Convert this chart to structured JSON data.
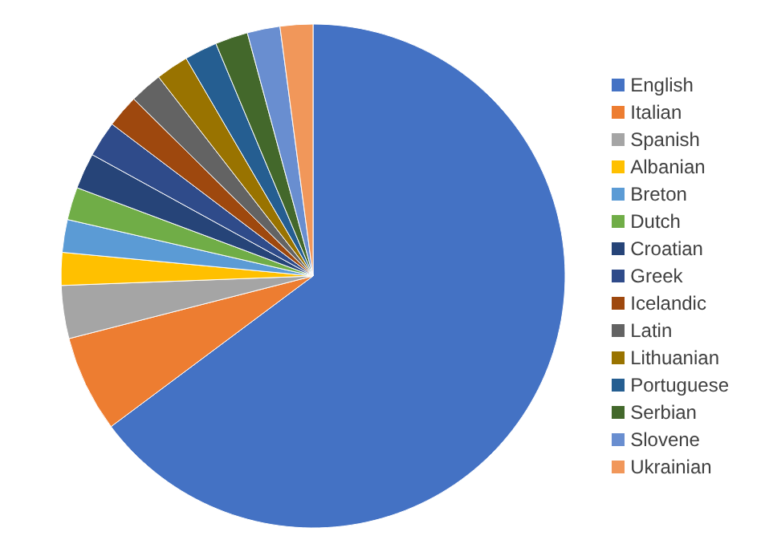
{
  "chart_data": {
    "type": "pie",
    "categories": [
      "English",
      "Italian",
      "Spanish",
      "Albanian",
      "Breton",
      "Dutch",
      "Croatian",
      "Greek",
      "Icelandic",
      "Latin",
      "Lithuanian",
      "Portuguese",
      "Serbian",
      "Slovene",
      "Ukrainian"
    ],
    "values": [
      64.8,
      6.2,
      3.4,
      2.1,
      2.1,
      2.1,
      2.3,
      2.3,
      2.1,
      2.1,
      2.1,
      2.1,
      2.1,
      2.1,
      2.1
    ],
    "colors": [
      "#4472c4",
      "#ed7d31",
      "#a5a5a5",
      "#ffc000",
      "#5b9bd5",
      "#70ad47",
      "#264478",
      "#2f4b8a",
      "#9e480e",
      "#636363",
      "#997300",
      "#255e91",
      "#43682b",
      "#698ed0",
      "#f1975a"
    ],
    "legend": "right"
  }
}
